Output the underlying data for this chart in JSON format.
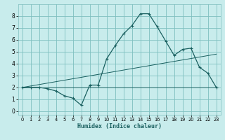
{
  "xlabel": "Humidex (Indice chaleur)",
  "bg_color": "#c8ecec",
  "grid_color": "#7fbfbf",
  "line_color": "#1a6060",
  "xlim": [
    -0.5,
    23.5
  ],
  "ylim": [
    -0.3,
    9.0
  ],
  "yticks": [
    0,
    1,
    2,
    3,
    4,
    5,
    6,
    7,
    8
  ],
  "xticks": [
    0,
    1,
    2,
    3,
    4,
    5,
    6,
    7,
    8,
    9,
    10,
    11,
    12,
    13,
    14,
    15,
    16,
    17,
    18,
    19,
    20,
    21,
    22,
    23
  ],
  "curve1_x": [
    0,
    1,
    2,
    3,
    4,
    5,
    6,
    7,
    8,
    9,
    10,
    11,
    12,
    13,
    14,
    15,
    16,
    17,
    18,
    19,
    20,
    21,
    22,
    23
  ],
  "curve1_y": [
    2.0,
    2.0,
    2.0,
    1.9,
    1.7,
    1.3,
    1.1,
    0.5,
    2.2,
    2.2,
    4.4,
    5.5,
    6.5,
    7.2,
    8.2,
    8.2,
    7.1,
    5.9,
    4.7,
    5.2,
    5.3,
    3.7,
    3.2,
    2.0
  ],
  "curve2_x": [
    0,
    23
  ],
  "curve2_y": [
    2.0,
    2.0
  ],
  "curve3_x": [
    0,
    23
  ],
  "curve3_y": [
    2.0,
    4.8
  ]
}
